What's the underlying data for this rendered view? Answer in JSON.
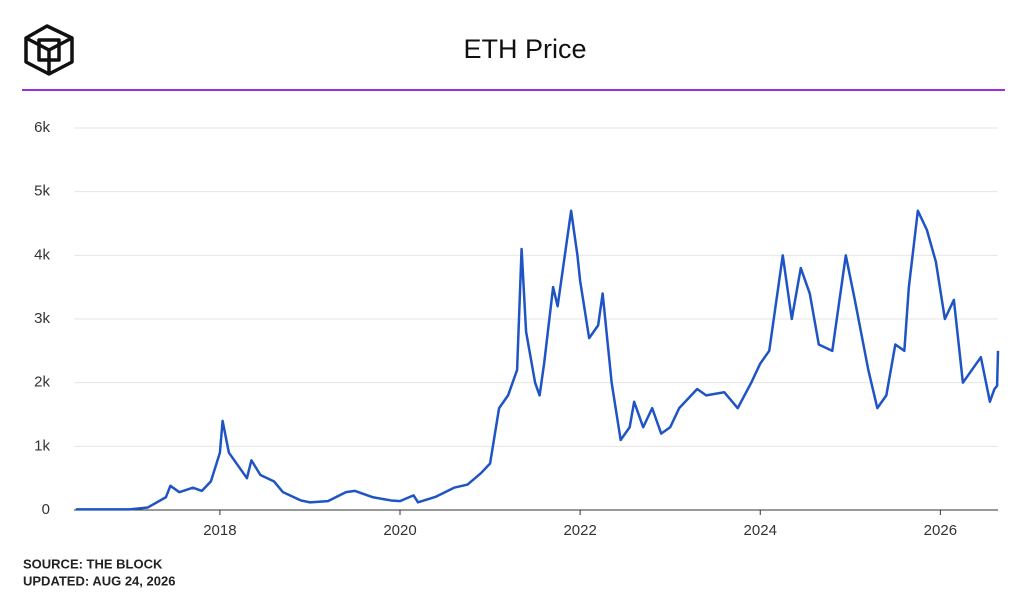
{
  "chart_data": {
    "type": "line",
    "title": "ETH Price",
    "source": "SOURCE: THE BLOCK",
    "updated": "UPDATED: AUG 24, 2026",
    "xlim": [
      2016.38,
      2026.64
    ],
    "xticks": [
      2018,
      2020,
      2022,
      2024,
      2026
    ],
    "ylim": [
      0,
      6000
    ],
    "yticks": [
      0,
      {
        "value": 1000,
        "label": "1k"
      },
      {
        "value": 2000,
        "label": "2k"
      },
      {
        "value": 3000,
        "label": "3k"
      },
      {
        "value": 4000,
        "label": "4k"
      },
      {
        "value": 5000,
        "label": "5k"
      },
      {
        "value": 6000,
        "label": "6k"
      }
    ],
    "grid": true,
    "x": [
      2016.4,
      2016.8,
      2017.0,
      2017.2,
      2017.4,
      2017.45,
      2017.55,
      2017.7,
      2017.8,
      2017.9,
      2018.0,
      2018.03,
      2018.1,
      2018.2,
      2018.3,
      2018.35,
      2018.45,
      2018.6,
      2018.7,
      2018.9,
      2019.0,
      2019.2,
      2019.4,
      2019.5,
      2019.7,
      2019.9,
      2020.0,
      2020.15,
      2020.2,
      2020.4,
      2020.6,
      2020.75,
      2020.9,
      2021.0,
      2021.1,
      2021.2,
      2021.3,
      2021.35,
      2021.4,
      2021.5,
      2021.55,
      2021.6,
      2021.7,
      2021.75,
      2021.85,
      2021.9,
      2021.97,
      2022.0,
      2022.1,
      2022.2,
      2022.25,
      2022.35,
      2022.45,
      2022.55,
      2022.6,
      2022.7,
      2022.8,
      2022.9,
      2023.0,
      2023.1,
      2023.3,
      2023.4,
      2023.6,
      2023.75,
      2023.9,
      2024.0,
      2024.1,
      2024.2,
      2024.25,
      2024.35,
      2024.45,
      2024.55,
      2024.65,
      2024.8,
      2024.9,
      2024.95,
      2025.05,
      2025.2,
      2025.3,
      2025.4,
      2025.5,
      2025.6,
      2025.65,
      2025.75,
      2025.85,
      2025.95,
      2026.05,
      2026.15,
      2026.25,
      2026.35,
      2026.45,
      2026.55,
      2026.6,
      2026.63,
      2026.64
    ],
    "series": [
      {
        "name": "ETH",
        "color": "#1f54c4",
        "values": [
          10,
          10,
          10,
          40,
          200,
          380,
          280,
          350,
          300,
          450,
          900,
          1400,
          900,
          700,
          500,
          780,
          550,
          450,
          280,
          150,
          120,
          140,
          280,
          300,
          200,
          150,
          140,
          230,
          120,
          210,
          350,
          400,
          580,
          730,
          1600,
          1800,
          2200,
          4100,
          2800,
          2000,
          1800,
          2300,
          3500,
          3200,
          4200,
          4700,
          4000,
          3600,
          2700,
          2900,
          3400,
          2000,
          1100,
          1300,
          1700,
          1300,
          1600,
          1200,
          1300,
          1600,
          1900,
          1800,
          1850,
          1600,
          2000,
          2300,
          2500,
          3500,
          4000,
          3000,
          3800,
          3400,
          2600,
          2500,
          3500,
          4000,
          3300,
          2200,
          1600,
          1800,
          2600,
          2500,
          3500,
          4700,
          4400,
          3900,
          3000,
          3300,
          2000,
          2200,
          2400,
          1700,
          1900,
          1950,
          2500
        ]
      }
    ]
  }
}
